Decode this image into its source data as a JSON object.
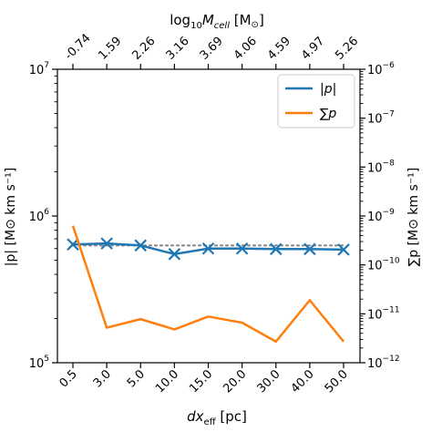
{
  "chart_data": {
    "type": "line",
    "x_categories": [
      "0.5",
      "3.0",
      "5.0",
      "10.0",
      "15.0",
      "20.0",
      "30.0",
      "40.0",
      "50.0"
    ],
    "top_ticks": [
      "-0.74",
      "1.59",
      "2.26",
      "3.16",
      "3.69",
      "4.06",
      "4.59",
      "4.97",
      "5.26"
    ],
    "xlabel_main": "dx",
    "xlabel_sub": "eff",
    "xlabel_unit": " [pc]",
    "top_label_main": "log",
    "top_label_sub": "10",
    "top_label_var": "M",
    "top_label_var_sub": "cell",
    "top_label_unit": " [M",
    "top_label_unit_sub": "⊙",
    "top_label_close": "]",
    "ylabel_left": "|p| [M⊙ km s⁻¹]",
    "ylabel_right": "∑p [M⊙ km s⁻¹]",
    "left_axis": {
      "scale": "log",
      "ylim": [
        100000,
        10000000
      ],
      "ticks": [
        {
          "value": 100000,
          "base": "10",
          "exp": "5"
        },
        {
          "value": 1000000,
          "base": "10",
          "exp": "6"
        },
        {
          "value": 10000000,
          "base": "10",
          "exp": "7"
        }
      ]
    },
    "right_axis": {
      "scale": "log",
      "ylim": [
        1e-12,
        1e-06
      ],
      "ticks": [
        {
          "value": 1e-12,
          "base": "10",
          "exp": "−12"
        },
        {
          "value": 1e-11,
          "base": "10",
          "exp": "−11"
        },
        {
          "value": 1e-10,
          "base": "10",
          "exp": "−10"
        },
        {
          "value": 1e-09,
          "base": "10",
          "exp": "−9"
        },
        {
          "value": 1e-08,
          "base": "10",
          "exp": "−8"
        },
        {
          "value": 1e-07,
          "base": "10",
          "exp": "−7"
        },
        {
          "value": 1e-06,
          "base": "10",
          "exp": "−6"
        }
      ]
    },
    "series": [
      {
        "name": "|p|",
        "axis": "left",
        "color": "#1f77b4",
        "marker": "x",
        "values": [
          640000,
          650000,
          630000,
          550000,
          600000,
          600000,
          595000,
          595000,
          590000
        ]
      },
      {
        "name": "∑p",
        "axis": "right",
        "color": "#ff7f0e",
        "marker": "none",
        "values": [
          6.3e-10,
          5.2e-12,
          7.8e-12,
          4.8e-12,
          8.8e-12,
          6.6e-12,
          2.7e-12,
          1.9e-11,
          2.7e-12
        ]
      }
    ],
    "reference_line": {
      "axis": "left",
      "value": 630000,
      "style": "dotted",
      "color": "#888888"
    },
    "legend": {
      "placement": "top-right"
    },
    "grid": false
  }
}
